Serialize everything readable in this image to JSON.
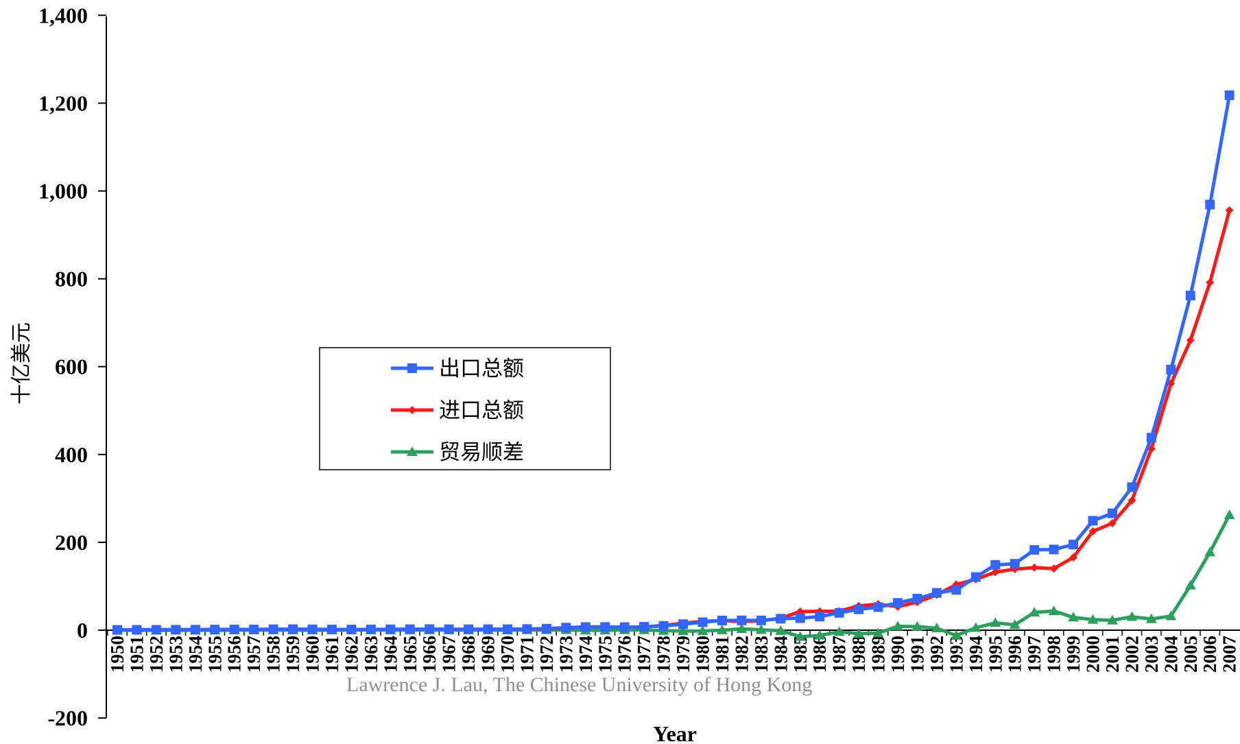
{
  "chart_data": {
    "type": "line",
    "title": "",
    "xlabel": "Year",
    "ylabel": "十亿美元",
    "ylim": [
      -200,
      1400
    ],
    "yticks": [
      -200,
      0,
      200,
      400,
      600,
      800,
      1000,
      1200,
      1400
    ],
    "ytick_labels": [
      "-200",
      "0",
      "200",
      "400",
      "600",
      "800",
      "1,000",
      "1,200",
      "1,400"
    ],
    "legend_position": "center-left",
    "grid": false,
    "annotation": "Lawrence J. Lau, The Chinese University of Hong Kong",
    "categories": [
      "1950",
      "1951",
      "1952",
      "1953",
      "1954",
      "1955",
      "1956",
      "1957",
      "1958",
      "1959",
      "1960",
      "1961",
      "1962",
      "1963",
      "1964",
      "1965",
      "1966",
      "1967",
      "1968",
      "1969",
      "1970",
      "1971",
      "1972",
      "1973",
      "1974",
      "1975",
      "1976",
      "1977",
      "1978",
      "1979",
      "1980",
      "1981",
      "1982",
      "1983",
      "1984",
      "1985",
      "1986",
      "1987",
      "1988",
      "1989",
      "1990",
      "1991",
      "1992",
      "1993",
      "1994",
      "1995",
      "1996",
      "1997",
      "1998",
      "1999",
      "2000",
      "2001",
      "2002",
      "2003",
      "2004",
      "2005",
      "2006",
      "2007"
    ],
    "series": [
      {
        "name": "出口总额",
        "color": "#3366ff",
        "marker": "square",
        "values": [
          0.6,
          0.8,
          0.8,
          1.0,
          1.1,
          1.4,
          1.6,
          1.6,
          2.0,
          2.3,
          1.9,
          1.5,
          1.5,
          1.7,
          1.9,
          2.2,
          2.4,
          2.1,
          2.1,
          2.2,
          2.3,
          2.6,
          3.4,
          5.8,
          7.1,
          7.3,
          6.9,
          7.6,
          9.8,
          13.7,
          18.1,
          22.0,
          22.3,
          22.2,
          26.1,
          27.4,
          30.9,
          39.4,
          47.5,
          52.5,
          62.1,
          71.8,
          84.9,
          91.7,
          121.0,
          148.8,
          151.1,
          182.8,
          183.7,
          194.9,
          249.2,
          266.1,
          325.6,
          438.2,
          593.3,
          762.0,
          969.1,
          1218.0
        ]
      },
      {
        "name": "进口总额",
        "color": "#ff1a1a",
        "marker": "diamond",
        "values": [
          0.6,
          1.2,
          1.1,
          1.3,
          1.3,
          1.7,
          1.6,
          1.5,
          1.9,
          2.1,
          2.0,
          1.5,
          1.2,
          1.3,
          1.6,
          2.0,
          2.3,
          2.0,
          2.0,
          1.8,
          2.3,
          2.2,
          2.9,
          5.2,
          7.6,
          7.5,
          6.6,
          7.2,
          10.9,
          15.7,
          20.0,
          22.0,
          19.3,
          21.4,
          27.4,
          42.3,
          42.9,
          43.2,
          55.3,
          59.1,
          53.4,
          63.8,
          80.6,
          104.0,
          115.7,
          132.1,
          138.8,
          142.4,
          140.2,
          165.7,
          225.1,
          243.6,
          295.2,
          412.8,
          561.2,
          660.0,
          791.5,
          955.8
        ]
      },
      {
        "name": "贸易顺差",
        "color": "#2e9e5e",
        "marker": "triangle",
        "values": [
          0.0,
          -0.4,
          -0.3,
          -0.3,
          -0.2,
          -0.3,
          0.0,
          0.1,
          0.1,
          0.2,
          -0.1,
          0.0,
          0.3,
          0.4,
          0.3,
          0.2,
          0.1,
          0.1,
          0.1,
          0.4,
          0.0,
          0.4,
          0.5,
          0.6,
          -0.5,
          -0.2,
          0.3,
          0.4,
          -1.1,
          -2.0,
          -1.9,
          0.0,
          3.0,
          0.8,
          -1.3,
          -14.9,
          -12.0,
          -3.8,
          -7.8,
          -6.6,
          8.7,
          8.1,
          4.4,
          -12.2,
          5.4,
          16.7,
          12.2,
          40.4,
          43.5,
          29.2,
          24.1,
          22.5,
          30.4,
          25.5,
          32.1,
          102.0,
          177.6,
          262.2
        ]
      }
    ]
  }
}
